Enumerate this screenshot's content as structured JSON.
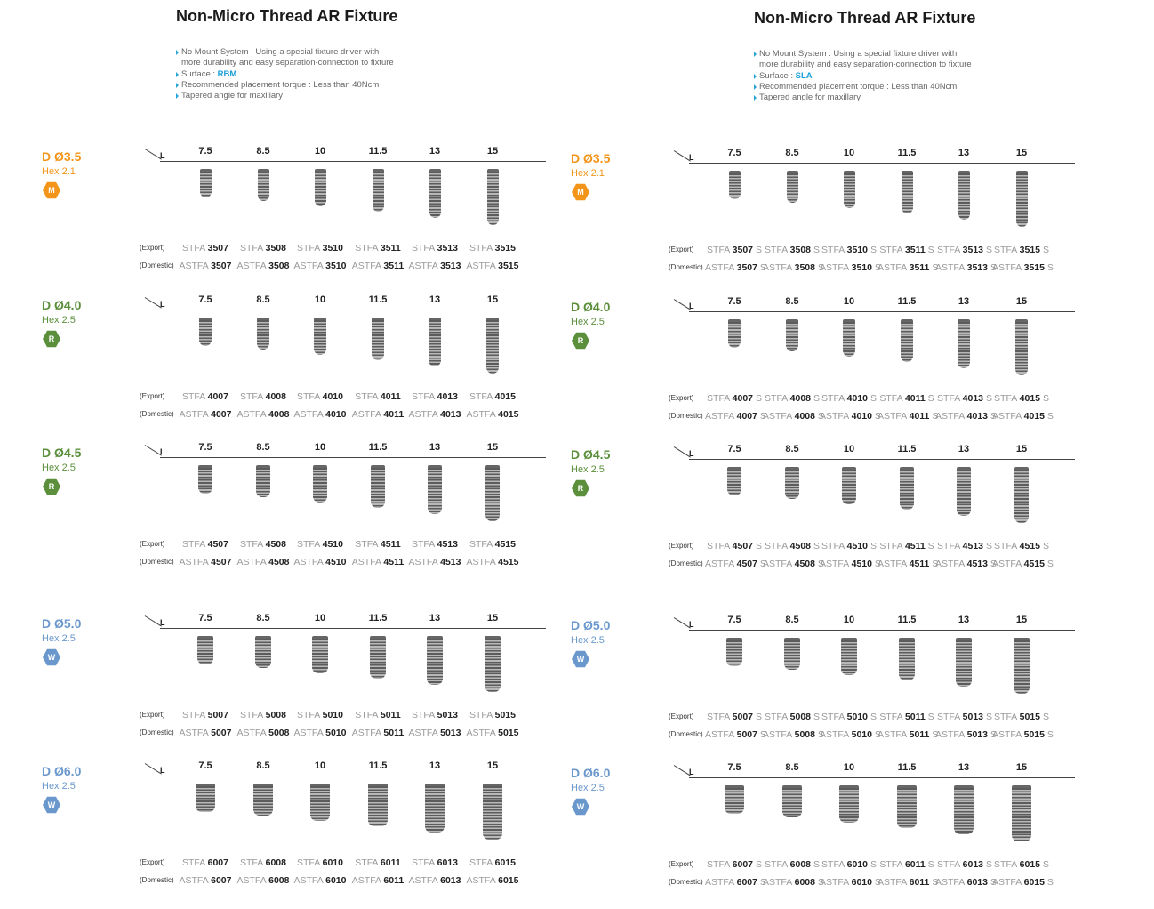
{
  "brand_colors": {
    "orange": "#f39519",
    "green": "#5b8f3c",
    "blue": "#6a98cc",
    "surface": "#1aa0d8"
  },
  "lengths": [
    "7.5",
    "8.5",
    "10",
    "11.5",
    "13",
    "15"
  ],
  "length_mm": [
    7.5,
    8.5,
    10,
    11.5,
    13,
    15
  ],
  "axis_label": "L",
  "export_label": "(Export)",
  "domestic_label": "(Domestic)",
  "export_prefix": "STFA",
  "domestic_prefix": "ASTFA",
  "panels": [
    {
      "title": "Non-Micro Thread AR Fixture",
      "bullet1a": "No Mount System : Using a special fixture driver with",
      "bullet1b": "more durability and easy separation-connection to fixture",
      "surface_label": "Surface :",
      "surface_value": "RBM",
      "bullet3": "Recommended placement torque : Less than 40Ncm",
      "bullet4": "Tapered angle for maxillary",
      "suffix": ""
    },
    {
      "title": "Non-Micro Thread AR Fixture",
      "bullet1a": "No Mount System : Using a special fixture driver with",
      "bullet1b": "more durability and easy separation-connection to fixture",
      "surface_label": "Surface :",
      "surface_value": "SLA",
      "bullet3": "Recommended placement torque : Less than 40Ncm",
      "bullet4": "Tapered angle for maxillary",
      "suffix": "S"
    }
  ],
  "sections": [
    {
      "d": "D Ø3.5",
      "hex": "Hex 2.1",
      "badge": "M",
      "color": "orange",
      "diameter_mm": 3.5,
      "codes": [
        "3507",
        "3508",
        "3510",
        "3511",
        "3513",
        "3515"
      ]
    },
    {
      "d": "D Ø4.0",
      "hex": "Hex 2.5",
      "badge": "R",
      "color": "green",
      "diameter_mm": 4.0,
      "codes": [
        "4007",
        "4008",
        "4010",
        "4011",
        "4013",
        "4015"
      ]
    },
    {
      "d": "D Ø4.5",
      "hex": "Hex 2.5",
      "badge": "R",
      "color": "green",
      "diameter_mm": 4.5,
      "codes": [
        "4507",
        "4508",
        "4510",
        "4511",
        "4513",
        "4515"
      ]
    },
    {
      "d": "D Ø5.0",
      "hex": "Hex 2.5",
      "badge": "W",
      "color": "blue",
      "diameter_mm": 5.0,
      "codes": [
        "5007",
        "5008",
        "5010",
        "5011",
        "5013",
        "5015"
      ]
    },
    {
      "d": "D Ø6.0",
      "hex": "Hex 2.5",
      "badge": "W",
      "color": "blue",
      "diameter_mm": 6.0,
      "codes": [
        "6007",
        "6008",
        "6010",
        "6011",
        "6013",
        "6015"
      ]
    }
  ]
}
